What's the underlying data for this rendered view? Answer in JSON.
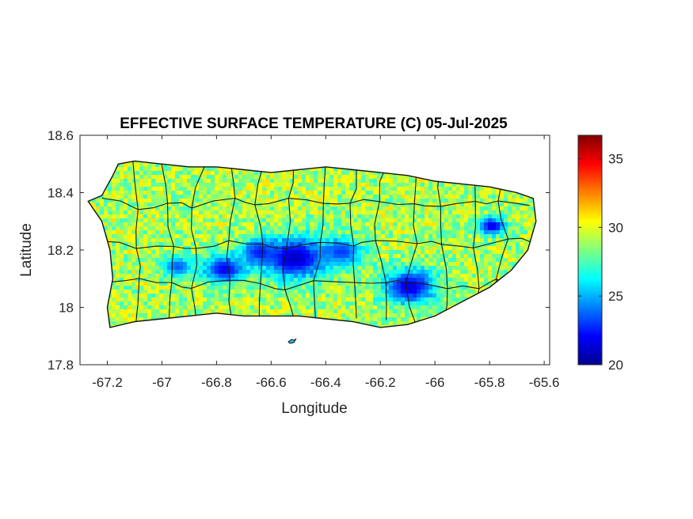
{
  "chart_data": {
    "type": "heatmap",
    "title": "EFFECTIVE SURFACE TEMPERATURE (C) 05-Jul-2025",
    "xlabel": "Longitude",
    "ylabel": "Latitude",
    "xlim": [
      -67.3,
      -65.58
    ],
    "ylim": [
      17.8,
      18.6
    ],
    "x_ticks": [
      -67.2,
      -67,
      -66.8,
      -66.6,
      -66.4,
      -66.2,
      -66,
      -65.8,
      -65.6
    ],
    "x_tick_labels": [
      "-67.2",
      "-67",
      "-66.8",
      "-66.6",
      "-66.4",
      "-66.2",
      "-66",
      "-65.8",
      "-65.6"
    ],
    "y_ticks": [
      17.8,
      18,
      18.2,
      18.4,
      18.6
    ],
    "y_tick_labels": [
      "17.8",
      "18",
      "18.2",
      "18.4",
      "18.6"
    ],
    "colorbar": {
      "colormap": "jet",
      "clim": [
        20,
        36.7
      ],
      "ticks": [
        20,
        25,
        30,
        35
      ],
      "tick_labels": [
        "20",
        "25",
        "30",
        "35"
      ]
    },
    "island_outline": [
      [
        -67.27,
        18.37
      ],
      [
        -67.22,
        18.39
      ],
      [
        -67.18,
        18.46
      ],
      [
        -67.16,
        18.5
      ],
      [
        -67.1,
        18.51
      ],
      [
        -67.0,
        18.5
      ],
      [
        -66.9,
        18.49
      ],
      [
        -66.8,
        18.49
      ],
      [
        -66.7,
        18.48
      ],
      [
        -66.6,
        18.47
      ],
      [
        -66.5,
        18.48
      ],
      [
        -66.4,
        18.49
      ],
      [
        -66.3,
        18.48
      ],
      [
        -66.2,
        18.47
      ],
      [
        -66.1,
        18.46
      ],
      [
        -66.0,
        18.44
      ],
      [
        -65.9,
        18.43
      ],
      [
        -65.8,
        18.42
      ],
      [
        -65.7,
        18.4
      ],
      [
        -65.64,
        18.38
      ],
      [
        -65.63,
        18.3
      ],
      [
        -65.66,
        18.2
      ],
      [
        -65.72,
        18.13
      ],
      [
        -65.8,
        18.07
      ],
      [
        -65.9,
        18.02
      ],
      [
        -66.0,
        17.97
      ],
      [
        -66.1,
        17.94
      ],
      [
        -66.2,
        17.93
      ],
      [
        -66.3,
        17.95
      ],
      [
        -66.4,
        17.96
      ],
      [
        -66.5,
        17.97
      ],
      [
        -66.6,
        17.97
      ],
      [
        -66.7,
        17.97
      ],
      [
        -66.8,
        17.98
      ],
      [
        -66.9,
        17.97
      ],
      [
        -67.0,
        17.96
      ],
      [
        -67.1,
        17.95
      ],
      [
        -67.19,
        17.93
      ],
      [
        -67.2,
        18.0
      ],
      [
        -67.18,
        18.1
      ],
      [
        -67.19,
        18.2
      ],
      [
        -67.22,
        18.3
      ]
    ],
    "cool_regions": [
      {
        "lon": -66.52,
        "lat": 18.18,
        "temp": 21.0,
        "radius_deg": 0.12
      },
      {
        "lon": -66.78,
        "lat": 18.14,
        "temp": 22.0,
        "radius_deg": 0.08
      },
      {
        "lon": -66.65,
        "lat": 18.2,
        "temp": 22.5,
        "radius_deg": 0.07
      },
      {
        "lon": -66.35,
        "lat": 18.2,
        "temp": 23.0,
        "radius_deg": 0.08
      },
      {
        "lon": -66.1,
        "lat": 18.08,
        "temp": 21.5,
        "radius_deg": 0.1
      },
      {
        "lon": -65.8,
        "lat": 18.29,
        "temp": 21.5,
        "radius_deg": 0.05
      },
      {
        "lon": -66.95,
        "lat": 18.15,
        "temp": 23.5,
        "radius_deg": 0.06
      }
    ],
    "background_temp_range": [
      25,
      31
    ]
  }
}
